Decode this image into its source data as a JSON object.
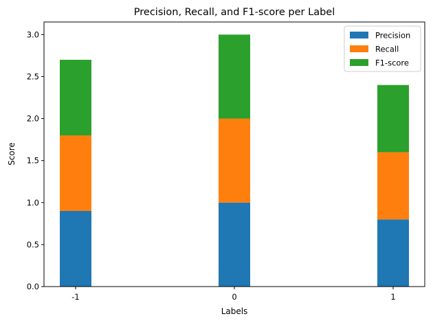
{
  "chart_data": {
    "type": "bar",
    "stacked": true,
    "title": "Precision, Recall, and F1-score per Label",
    "xlabel": "Labels",
    "ylabel": "Score",
    "categories": [
      "-1",
      "0",
      "1"
    ],
    "ylim": [
      0,
      3.15
    ],
    "yticks": [
      "0.0",
      "0.5",
      "1.0",
      "1.5",
      "2.0",
      "2.5",
      "3.0"
    ],
    "grid": false,
    "legend_position": "top-right",
    "series": [
      {
        "name": "Precision",
        "color": "#1f77b4",
        "values": [
          0.9,
          1.0,
          0.8
        ]
      },
      {
        "name": "Recall",
        "color": "#ff7f0e",
        "values": [
          0.9,
          1.0,
          0.8
        ]
      },
      {
        "name": "F1-score",
        "color": "#2ca02c",
        "values": [
          0.9,
          1.0,
          0.8
        ]
      }
    ]
  }
}
